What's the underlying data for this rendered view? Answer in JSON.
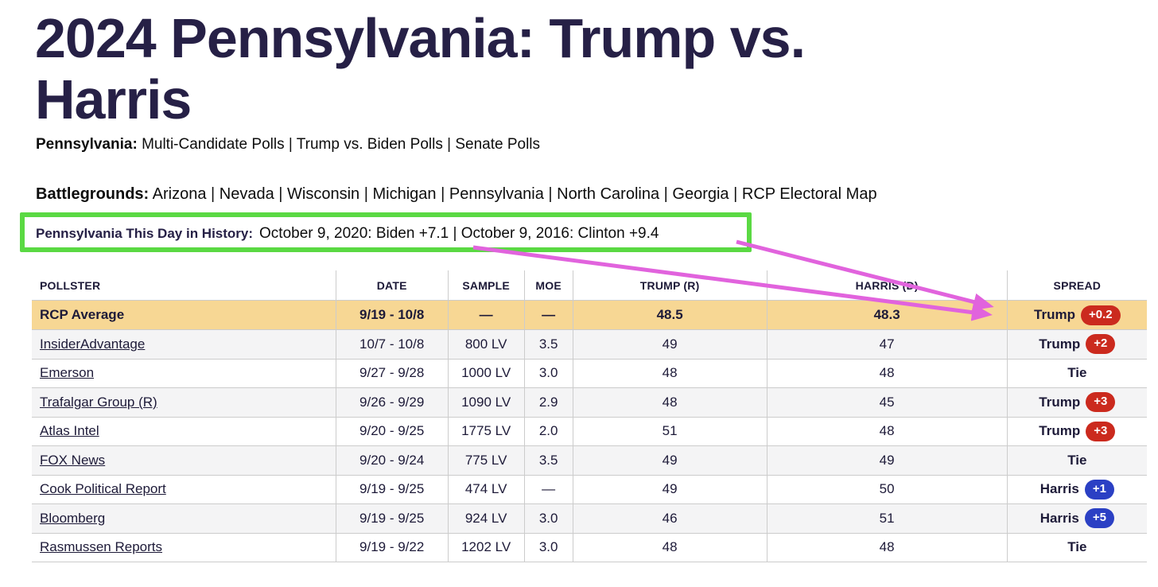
{
  "title": "2024 Pennsylvania: Trump vs. Harris",
  "subnav": {
    "label": "Pennsylvania:",
    "links": [
      "Multi-Candidate Polls",
      "Trump vs. Biden Polls",
      "Senate Polls"
    ]
  },
  "battlegrounds": {
    "label": "Battlegrounds:",
    "links": [
      "Arizona",
      "Nevada",
      "Wisconsin",
      "Michigan",
      "Pennsylvania",
      "North Carolina",
      "Georgia",
      "RCP Electoral Map"
    ]
  },
  "history": {
    "label": "Pennsylvania This Day in History:",
    "text": "October 9, 2020: Biden +7.1 | October 9, 2016: Clinton +9.4"
  },
  "table": {
    "columns": [
      "POLLSTER",
      "DATE",
      "SAMPLE",
      "MOE",
      "TRUMP (R)",
      "HARRIS (D)",
      "SPREAD"
    ],
    "average": {
      "pollster": "RCP Average",
      "date": "9/19 - 10/8",
      "sample": "—",
      "moe": "—",
      "trump": "48.5",
      "harris": "48.3",
      "spread": {
        "winner": "Trump",
        "margin": "+0.2"
      }
    },
    "rows": [
      {
        "pollster": "InsiderAdvantage",
        "date": "10/7 - 10/8",
        "sample": "800 LV",
        "moe": "3.5",
        "trump": "49",
        "harris": "47",
        "spread": {
          "winner": "Trump",
          "margin": "+2"
        }
      },
      {
        "pollster": "Emerson",
        "date": "9/27 - 9/28",
        "sample": "1000 LV",
        "moe": "3.0",
        "trump": "48",
        "harris": "48",
        "spread": {
          "winner": "Tie",
          "margin": ""
        }
      },
      {
        "pollster": "Trafalgar Group (R)",
        "date": "9/26 - 9/29",
        "sample": "1090 LV",
        "moe": "2.9",
        "trump": "48",
        "harris": "45",
        "spread": {
          "winner": "Trump",
          "margin": "+3"
        }
      },
      {
        "pollster": "Atlas Intel",
        "date": "9/20 - 9/25",
        "sample": "1775 LV",
        "moe": "2.0",
        "trump": "51",
        "harris": "48",
        "spread": {
          "winner": "Trump",
          "margin": "+3"
        }
      },
      {
        "pollster": "FOX News",
        "date": "9/20 - 9/24",
        "sample": "775 LV",
        "moe": "3.5",
        "trump": "49",
        "harris": "49",
        "spread": {
          "winner": "Tie",
          "margin": ""
        }
      },
      {
        "pollster": "Cook Political Report",
        "date": "9/19 - 9/25",
        "sample": "474 LV",
        "moe": "—",
        "trump": "49",
        "harris": "50",
        "spread": {
          "winner": "Harris",
          "margin": "+1"
        }
      },
      {
        "pollster": "Bloomberg",
        "date": "9/19 - 9/25",
        "sample": "924 LV",
        "moe": "3.0",
        "trump": "46",
        "harris": "51",
        "spread": {
          "winner": "Harris",
          "margin": "+5"
        }
      },
      {
        "pollster": "Rasmussen Reports",
        "date": "9/19 - 9/22",
        "sample": "1202 LV",
        "moe": "3.0",
        "trump": "48",
        "harris": "48",
        "spread": {
          "winner": "Tie",
          "margin": ""
        }
      }
    ]
  },
  "annotations": {
    "highlight_box_color": "#5ad943",
    "arrow_color": "#e163dd"
  },
  "colors": {
    "title_text": "#262046",
    "table_text": "#1d1a38",
    "average_row_bg": "#f7d794",
    "alt_row_bg": "#f4f4f5",
    "trump_badge": "#cb2a1e",
    "harris_badge": "#2b40c4",
    "border": "#cccccc"
  }
}
